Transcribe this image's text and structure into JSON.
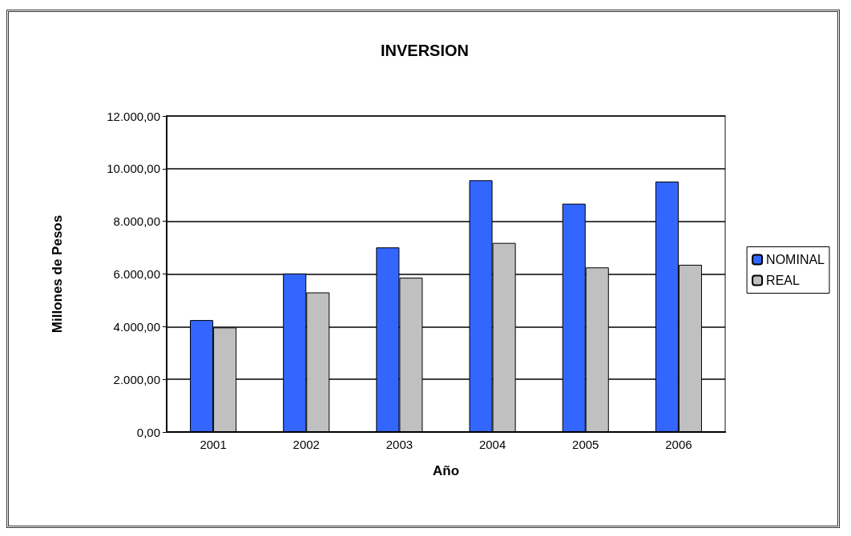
{
  "chart_data": {
    "type": "bar",
    "title": "INVERSION",
    "xlabel": "Año",
    "ylabel": "Millones de Pesos",
    "categories": [
      "2001",
      "2002",
      "2003",
      "2004",
      "2005",
      "2006"
    ],
    "series": [
      {
        "name": "NOMINAL",
        "color": "#3366ff",
        "values": [
          4250,
          6020,
          7010,
          9560,
          8670,
          9510
        ]
      },
      {
        "name": "REAL",
        "color": "#c0c0c0",
        "values": [
          3970,
          5300,
          5860,
          7180,
          6250,
          6350
        ]
      }
    ],
    "ylim": [
      0,
      12000
    ],
    "yticks": [
      {
        "value": 0,
        "label": "0,00"
      },
      {
        "value": 2000,
        "label": "2.000,00"
      },
      {
        "value": 4000,
        "label": "4.000,00"
      },
      {
        "value": 6000,
        "label": "6.000,00"
      },
      {
        "value": 8000,
        "label": "8.000,00"
      },
      {
        "value": 10000,
        "label": "10.000,00"
      },
      {
        "value": 12000,
        "label": "12.000,00"
      }
    ],
    "grid": "y",
    "legend": "right"
  }
}
